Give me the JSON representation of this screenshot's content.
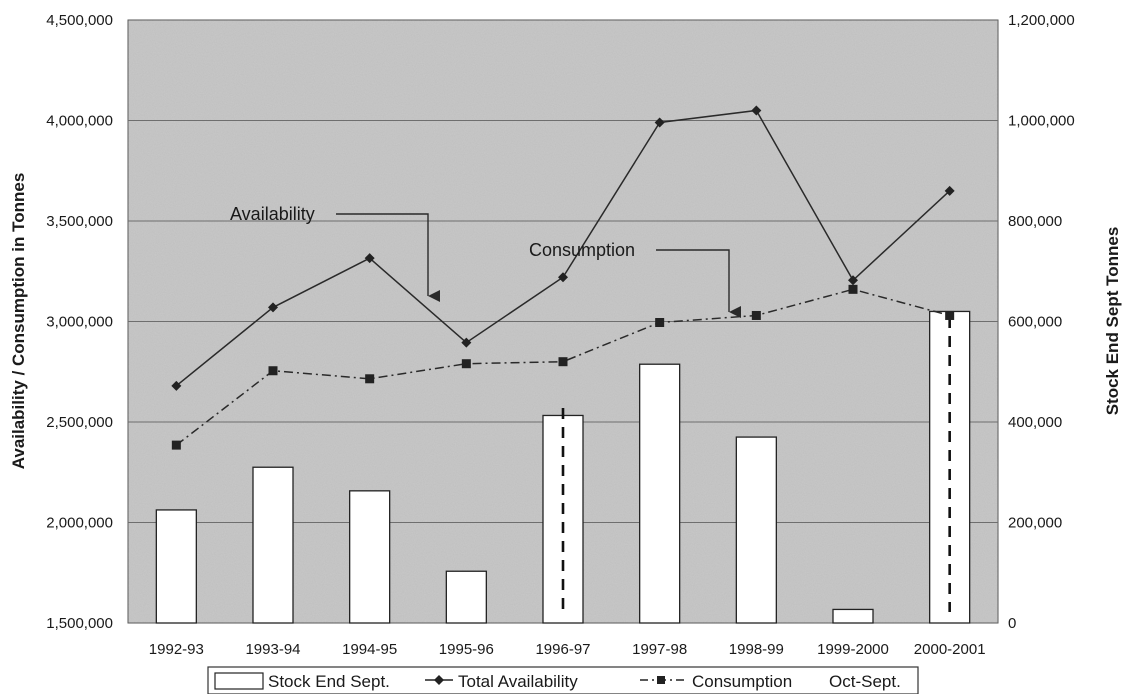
{
  "chart_data": {
    "type": "bar",
    "categories": [
      "1992-93",
      "1993-94",
      "1994-95",
      "1995-96",
      "1996-97",
      "1997-98",
      "1998-99",
      "1999-2000",
      "2000-2001"
    ],
    "series": [
      {
        "name": "Stock End Sept.",
        "type": "bar",
        "axis": "right",
        "values": [
          225000,
          310000,
          263000,
          103000,
          413000,
          515000,
          370000,
          27000,
          620000
        ]
      },
      {
        "name": "Total Availability",
        "type": "line",
        "axis": "left",
        "marker": "diamond",
        "values": [
          2680000,
          3070000,
          3315000,
          2895000,
          3220000,
          3990000,
          4050000,
          3205000,
          3650000
        ]
      },
      {
        "name": "Consumption",
        "type": "line",
        "axis": "left",
        "marker": "square",
        "dash": "dash-dot",
        "values": [
          2385000,
          2755000,
          2715000,
          2790000,
          2800000,
          2995000,
          3030000,
          3160000,
          3030000
        ]
      }
    ],
    "left_axis": {
      "label": "Availability / Consumption in Tonnes",
      "ylim": [
        1500000,
        4500000
      ],
      "ticks": [
        "1,500,000",
        "2,000,000",
        "2,500,000",
        "3,000,000",
        "3,500,000",
        "4,000,000",
        "4,500,000"
      ]
    },
    "right_axis": {
      "label": "Stock End Sept Tonnes",
      "ylim": [
        0,
        1200000
      ],
      "ticks": [
        "0",
        "200,000",
        "400,000",
        "600,000",
        "800,000",
        "1,000,000",
        "1,200,000"
      ]
    },
    "annotations": [
      {
        "text": "Availability",
        "series": "Total Availability",
        "category": "1994-95"
      },
      {
        "text": "Consumption",
        "series": "Consumption",
        "category": "1998-99"
      }
    ],
    "legend": {
      "position": "bottom",
      "items": [
        "Stock End Sept.",
        "Total Availability",
        "Consumption"
      ],
      "suffix": "Oct-Sept."
    },
    "grid": true,
    "colors": {
      "plot_background": "#c9c9c9",
      "bar_fill": "#ffffff",
      "line": "#2a2a2a",
      "grid": "#6e6e6e"
    }
  }
}
